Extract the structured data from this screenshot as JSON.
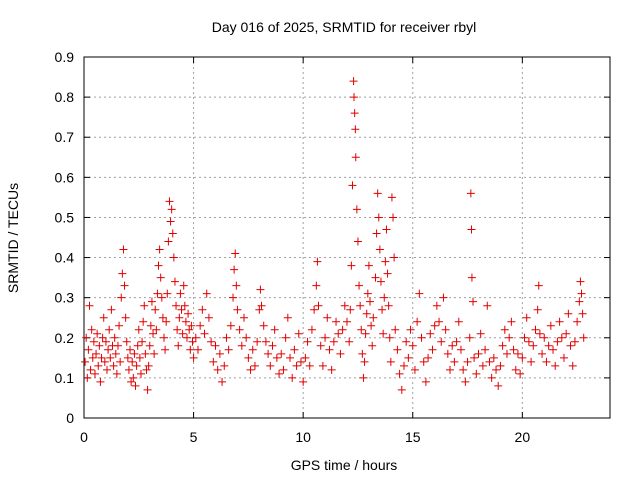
{
  "chart_data": {
    "type": "scatter",
    "title": "Day 016 of 2025, SRMTID for receiver rbyl",
    "xlabel": "GPS time / hours",
    "ylabel": "SRMTID / TECUs",
    "xlim": [
      0,
      24
    ],
    "ylim": [
      0,
      0.9
    ],
    "xticks": [
      0,
      5,
      10,
      15,
      20
    ],
    "yticks": [
      0,
      0.1,
      0.2,
      0.3,
      0.4,
      0.5,
      0.6,
      0.7,
      0.8,
      0.9
    ],
    "grid": true,
    "marker": "plus",
    "color": "#e00000",
    "series": [
      {
        "name": "SRMTID",
        "points": [
          [
            0.05,
            0.14
          ],
          [
            0.1,
            0.2
          ],
          [
            0.15,
            0.1
          ],
          [
            0.2,
            0.17
          ],
          [
            0.25,
            0.28
          ],
          [
            0.3,
            0.12
          ],
          [
            0.35,
            0.22
          ],
          [
            0.4,
            0.15
          ],
          [
            0.45,
            0.19
          ],
          [
            0.5,
            0.11
          ],
          [
            0.55,
            0.16
          ],
          [
            0.6,
            0.21
          ],
          [
            0.65,
            0.13
          ],
          [
            0.7,
            0.18
          ],
          [
            0.75,
            0.09
          ],
          [
            0.8,
            0.15
          ],
          [
            0.85,
            0.2
          ],
          [
            0.9,
            0.25
          ],
          [
            0.95,
            0.14
          ],
          [
            1.0,
            0.19
          ],
          [
            1.05,
            0.12
          ],
          [
            1.1,
            0.17
          ],
          [
            1.15,
            0.22
          ],
          [
            1.2,
            0.15
          ],
          [
            1.25,
            0.27
          ],
          [
            1.3,
            0.18
          ],
          [
            1.35,
            0.13
          ],
          [
            1.4,
            0.2
          ],
          [
            1.45,
            0.16
          ],
          [
            1.5,
            0.11
          ],
          [
            1.55,
            0.18
          ],
          [
            1.6,
            0.23
          ],
          [
            1.65,
            0.14
          ],
          [
            1.7,
            0.3
          ],
          [
            1.75,
            0.36
          ],
          [
            1.8,
            0.42
          ],
          [
            1.85,
            0.33
          ],
          [
            1.9,
            0.25
          ],
          [
            1.95,
            0.19
          ],
          [
            2.0,
            0.15
          ],
          [
            2.05,
            0.12
          ],
          [
            2.1,
            0.17
          ],
          [
            2.15,
            0.09
          ],
          [
            2.2,
            0.14
          ],
          [
            2.25,
            0.1
          ],
          [
            2.3,
            0.16
          ],
          [
            2.35,
            0.08
          ],
          [
            2.4,
            0.13
          ],
          [
            2.45,
            0.18
          ],
          [
            2.5,
            0.22
          ],
          [
            2.55,
            0.15
          ],
          [
            2.6,
            0.11
          ],
          [
            2.65,
            0.19
          ],
          [
            2.7,
            0.24
          ],
          [
            2.75,
            0.28
          ],
          [
            2.8,
            0.16
          ],
          [
            2.85,
            0.12
          ],
          [
            2.9,
            0.07
          ],
          [
            2.95,
            0.13
          ],
          [
            3.0,
            0.18
          ],
          [
            3.05,
            0.23
          ],
          [
            3.1,
            0.29
          ],
          [
            3.15,
            0.21
          ],
          [
            3.2,
            0.16
          ],
          [
            3.25,
            0.27
          ],
          [
            3.3,
            0.22
          ],
          [
            3.35,
            0.31
          ],
          [
            3.4,
            0.38
          ],
          [
            3.45,
            0.42
          ],
          [
            3.5,
            0.35
          ],
          [
            3.55,
            0.3
          ],
          [
            3.6,
            0.25
          ],
          [
            3.65,
            0.2
          ],
          [
            3.7,
            0.17
          ],
          [
            3.75,
            0.24
          ],
          [
            3.8,
            0.31
          ],
          [
            3.85,
            0.44
          ],
          [
            3.9,
            0.54
          ],
          [
            3.95,
            0.49
          ],
          [
            4.0,
            0.52
          ],
          [
            4.05,
            0.46
          ],
          [
            4.1,
            0.4
          ],
          [
            4.15,
            0.34
          ],
          [
            4.2,
            0.28
          ],
          [
            4.25,
            0.22
          ],
          [
            4.3,
            0.18
          ],
          [
            4.35,
            0.25
          ],
          [
            4.4,
            0.31
          ],
          [
            4.45,
            0.27
          ],
          [
            4.5,
            0.21
          ],
          [
            4.55,
            0.33
          ],
          [
            4.6,
            0.28
          ],
          [
            4.65,
            0.24
          ],
          [
            4.7,
            0.2
          ],
          [
            4.75,
            0.26
          ],
          [
            4.8,
            0.22
          ],
          [
            4.85,
            0.17
          ],
          [
            4.9,
            0.23
          ],
          [
            4.95,
            0.19
          ],
          [
            5.0,
            0.15
          ],
          [
            5.1,
            0.2
          ],
          [
            5.2,
            0.17
          ],
          [
            5.3,
            0.23
          ],
          [
            5.4,
            0.27
          ],
          [
            5.5,
            0.21
          ],
          [
            5.6,
            0.31
          ],
          [
            5.7,
            0.25
          ],
          [
            5.8,
            0.19
          ],
          [
            5.9,
            0.14
          ],
          [
            6.0,
            0.18
          ],
          [
            6.1,
            0.12
          ],
          [
            6.2,
            0.16
          ],
          [
            6.3,
            0.09
          ],
          [
            6.4,
            0.13
          ],
          [
            6.5,
            0.2
          ],
          [
            6.6,
            0.17
          ],
          [
            6.7,
            0.23
          ],
          [
            6.8,
            0.3
          ],
          [
            6.85,
            0.37
          ],
          [
            6.9,
            0.41
          ],
          [
            6.95,
            0.33
          ],
          [
            7.0,
            0.27
          ],
          [
            7.1,
            0.22
          ],
          [
            7.2,
            0.18
          ],
          [
            7.3,
            0.25
          ],
          [
            7.4,
            0.2
          ],
          [
            7.5,
            0.15
          ],
          [
            7.6,
            0.12
          ],
          [
            7.7,
            0.17
          ],
          [
            7.8,
            0.13
          ],
          [
            7.9,
            0.19
          ],
          [
            8.0,
            0.27
          ],
          [
            8.05,
            0.32
          ],
          [
            8.1,
            0.28
          ],
          [
            8.2,
            0.23
          ],
          [
            8.3,
            0.19
          ],
          [
            8.4,
            0.16
          ],
          [
            8.5,
            0.13
          ],
          [
            8.6,
            0.18
          ],
          [
            8.7,
            0.22
          ],
          [
            8.8,
            0.15
          ],
          [
            8.9,
            0.11
          ],
          [
            9.0,
            0.16
          ],
          [
            9.1,
            0.12
          ],
          [
            9.2,
            0.2
          ],
          [
            9.3,
            0.25
          ],
          [
            9.4,
            0.15
          ],
          [
            9.5,
            0.1
          ],
          [
            9.6,
            0.17
          ],
          [
            9.7,
            0.13
          ],
          [
            9.8,
            0.21
          ],
          [
            9.9,
            0.14
          ],
          [
            10.0,
            0.09
          ],
          [
            10.1,
            0.15
          ],
          [
            10.2,
            0.19
          ],
          [
            10.3,
            0.13
          ],
          [
            10.4,
            0.22
          ],
          [
            10.5,
            0.27
          ],
          [
            10.6,
            0.33
          ],
          [
            10.65,
            0.39
          ],
          [
            10.7,
            0.28
          ],
          [
            10.8,
            0.18
          ],
          [
            10.9,
            0.13
          ],
          [
            11.0,
            0.2
          ],
          [
            11.1,
            0.25
          ],
          [
            11.2,
            0.17
          ],
          [
            11.3,
            0.12
          ],
          [
            11.4,
            0.19
          ],
          [
            11.5,
            0.24
          ],
          [
            11.6,
            0.21
          ],
          [
            11.7,
            0.16
          ],
          [
            11.8,
            0.22
          ],
          [
            11.9,
            0.28
          ],
          [
            12.0,
            0.24
          ],
          [
            12.1,
            0.19
          ],
          [
            12.15,
            0.27
          ],
          [
            12.2,
            0.38
          ],
          [
            12.25,
            0.58
          ],
          [
            12.3,
            0.84
          ],
          [
            12.32,
            0.8
          ],
          [
            12.35,
            0.76
          ],
          [
            12.38,
            0.72
          ],
          [
            12.4,
            0.65
          ],
          [
            12.45,
            0.52
          ],
          [
            12.5,
            0.44
          ],
          [
            12.55,
            0.33
          ],
          [
            12.6,
            0.28
          ],
          [
            12.65,
            0.22
          ],
          [
            12.7,
            0.16
          ],
          [
            12.75,
            0.1
          ],
          [
            12.8,
            0.14
          ],
          [
            12.85,
            0.21
          ],
          [
            12.9,
            0.26
          ],
          [
            12.95,
            0.31
          ],
          [
            13.0,
            0.38
          ],
          [
            13.05,
            0.29
          ],
          [
            13.1,
            0.23
          ],
          [
            13.15,
            0.18
          ],
          [
            13.2,
            0.25
          ],
          [
            13.3,
            0.35
          ],
          [
            13.35,
            0.46
          ],
          [
            13.4,
            0.56
          ],
          [
            13.45,
            0.5
          ],
          [
            13.5,
            0.42
          ],
          [
            13.55,
            0.34
          ],
          [
            13.6,
            0.27
          ],
          [
            13.65,
            0.21
          ],
          [
            13.7,
            0.3
          ],
          [
            13.75,
            0.39
          ],
          [
            13.8,
            0.47
          ],
          [
            13.85,
            0.36
          ],
          [
            13.9,
            0.28
          ],
          [
            13.95,
            0.2
          ],
          [
            14.0,
            0.14
          ],
          [
            14.05,
            0.55
          ],
          [
            14.1,
            0.5
          ],
          [
            14.15,
            0.4
          ],
          [
            14.2,
            0.22
          ],
          [
            14.3,
            0.17
          ],
          [
            14.4,
            0.11
          ],
          [
            14.5,
            0.07
          ],
          [
            14.6,
            0.13
          ],
          [
            14.7,
            0.19
          ],
          [
            14.8,
            0.15
          ],
          [
            14.9,
            0.22
          ],
          [
            15.0,
            0.18
          ],
          [
            15.1,
            0.12
          ],
          [
            15.2,
            0.24
          ],
          [
            15.3,
            0.31
          ],
          [
            15.4,
            0.2
          ],
          [
            15.5,
            0.14
          ],
          [
            15.6,
            0.09
          ],
          [
            15.7,
            0.15
          ],
          [
            15.8,
            0.21
          ],
          [
            15.9,
            0.17
          ],
          [
            16.0,
            0.23
          ],
          [
            16.1,
            0.28
          ],
          [
            16.2,
            0.24
          ],
          [
            16.3,
            0.19
          ],
          [
            16.4,
            0.3
          ],
          [
            16.5,
            0.22
          ],
          [
            16.6,
            0.16
          ],
          [
            16.7,
            0.12
          ],
          [
            16.8,
            0.18
          ],
          [
            16.9,
            0.14
          ],
          [
            17.0,
            0.19
          ],
          [
            17.1,
            0.24
          ],
          [
            17.2,
            0.17
          ],
          [
            17.3,
            0.12
          ],
          [
            17.4,
            0.09
          ],
          [
            17.5,
            0.14
          ],
          [
            17.6,
            0.2
          ],
          [
            17.65,
            0.56
          ],
          [
            17.68,
            0.47
          ],
          [
            17.7,
            0.35
          ],
          [
            17.75,
            0.29
          ],
          [
            17.8,
            0.15
          ],
          [
            17.9,
            0.11
          ],
          [
            18.0,
            0.16
          ],
          [
            18.1,
            0.21
          ],
          [
            18.2,
            0.13
          ],
          [
            18.3,
            0.17
          ],
          [
            18.4,
            0.28
          ],
          [
            18.5,
            0.14
          ],
          [
            18.6,
            0.1
          ],
          [
            18.7,
            0.15
          ],
          [
            18.8,
            0.12
          ],
          [
            18.9,
            0.08
          ],
          [
            19.0,
            0.13
          ],
          [
            19.1,
            0.18
          ],
          [
            19.2,
            0.22
          ],
          [
            19.3,
            0.16
          ],
          [
            19.4,
            0.2
          ],
          [
            19.5,
            0.24
          ],
          [
            19.6,
            0.17
          ],
          [
            19.7,
            0.12
          ],
          [
            19.8,
            0.16
          ],
          [
            19.9,
            0.11
          ],
          [
            20.0,
            0.15
          ],
          [
            20.1,
            0.2
          ],
          [
            20.2,
            0.25
          ],
          [
            20.3,
            0.19
          ],
          [
            20.4,
            0.14
          ],
          [
            20.5,
            0.18
          ],
          [
            20.6,
            0.22
          ],
          [
            20.7,
            0.27
          ],
          [
            20.75,
            0.33
          ],
          [
            20.8,
            0.21
          ],
          [
            20.9,
            0.16
          ],
          [
            21.0,
            0.2
          ],
          [
            21.1,
            0.14
          ],
          [
            21.2,
            0.18
          ],
          [
            21.3,
            0.23
          ],
          [
            21.4,
            0.17
          ],
          [
            21.5,
            0.13
          ],
          [
            21.6,
            0.19
          ],
          [
            21.7,
            0.24
          ],
          [
            21.8,
            0.2
          ],
          [
            21.9,
            0.15
          ],
          [
            22.0,
            0.21
          ],
          [
            22.1,
            0.26
          ],
          [
            22.2,
            0.18
          ],
          [
            22.3,
            0.13
          ],
          [
            22.4,
            0.19
          ],
          [
            22.5,
            0.24
          ],
          [
            22.6,
            0.29
          ],
          [
            22.65,
            0.34
          ],
          [
            22.7,
            0.31
          ],
          [
            22.75,
            0.26
          ],
          [
            22.8,
            0.2
          ]
        ]
      }
    ]
  }
}
